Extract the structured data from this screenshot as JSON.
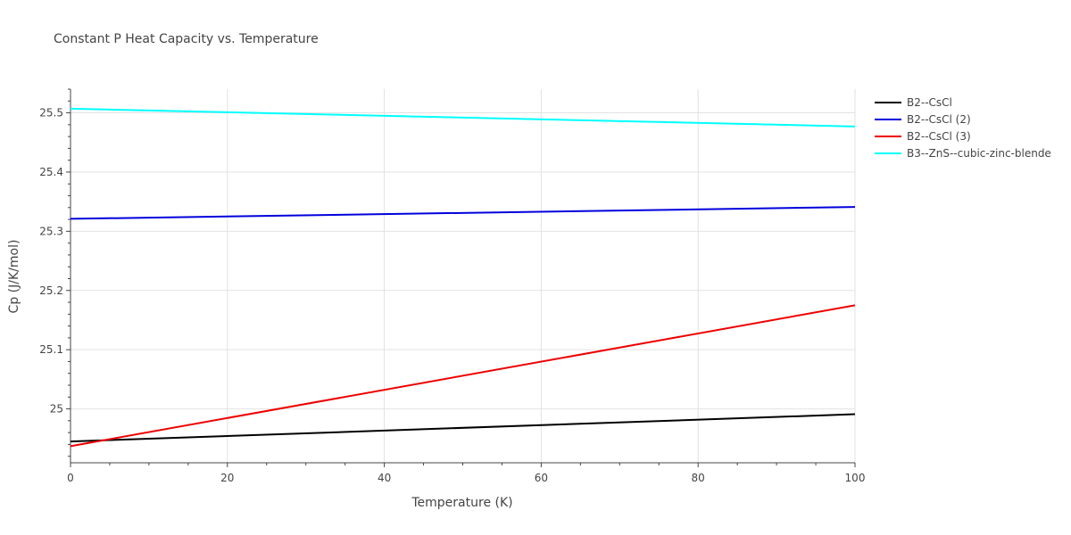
{
  "chart_data": {
    "type": "line",
    "title": "Constant P Heat Capacity vs. Temperature",
    "xlabel": "Temperature (K)",
    "ylabel": "Cp (J/K/mol)",
    "xlim": [
      0,
      100
    ],
    "ylim": [
      24.909,
      25.54
    ],
    "x_ticks": [
      0,
      20,
      40,
      60,
      80,
      100
    ],
    "x_tick_labels": [
      "0",
      "20",
      "40",
      "60",
      "80",
      "100"
    ],
    "y_ticks": [
      25.0,
      25.1,
      25.2,
      25.3,
      25.4,
      25.5
    ],
    "y_tick_labels": [
      "25",
      "25.1",
      "25.2",
      "25.3",
      "25.4",
      "25.5"
    ],
    "grid": true,
    "legend_position": "top-right",
    "series": [
      {
        "name": "B2--CsCl",
        "color": "#000000",
        "x": [
          0,
          100
        ],
        "y": [
          24.945,
          24.991
        ]
      },
      {
        "name": "B2--CsCl (2)",
        "color": "#0000dd",
        "x": [
          0,
          100
        ],
        "y": [
          25.321,
          25.341
        ]
      },
      {
        "name": "B2--CsCl (3)",
        "color": "#ee0000",
        "x": [
          0,
          100
        ],
        "y": [
          24.937,
          25.175
        ]
      },
      {
        "name": "B3--ZnS--cubic-zinc-blende",
        "color": "#00ffff",
        "x": [
          0,
          100
        ],
        "y": [
          25.507,
          25.477
        ]
      }
    ]
  }
}
